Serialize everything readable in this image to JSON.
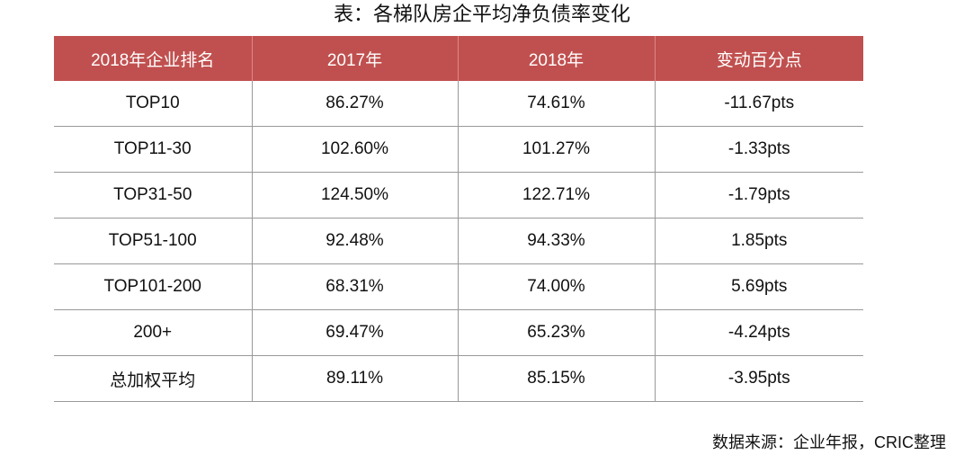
{
  "title": "表：各梯队房企平均净负债率变化",
  "table": {
    "header": [
      "2018年企业排名",
      "2017年",
      "2018年",
      "变动百分点"
    ],
    "rows": [
      [
        "TOP10",
        "86.27%",
        "74.61%",
        "-11.67pts"
      ],
      [
        "TOP11-30",
        "102.60%",
        "101.27%",
        "-1.33pts"
      ],
      [
        "TOP31-50",
        "124.50%",
        "122.71%",
        "-1.79pts"
      ],
      [
        "TOP51-100",
        "92.48%",
        "94.33%",
        "1.85pts"
      ],
      [
        "TOP101-200",
        "68.31%",
        "74.00%",
        "5.69pts"
      ],
      [
        "200+",
        "69.47%",
        "65.23%",
        "-4.24pts"
      ],
      [
        "总加权平均",
        "89.11%",
        "85.15%",
        "-3.95pts"
      ]
    ]
  },
  "source": "数据来源：企业年报，CRIC整理"
}
